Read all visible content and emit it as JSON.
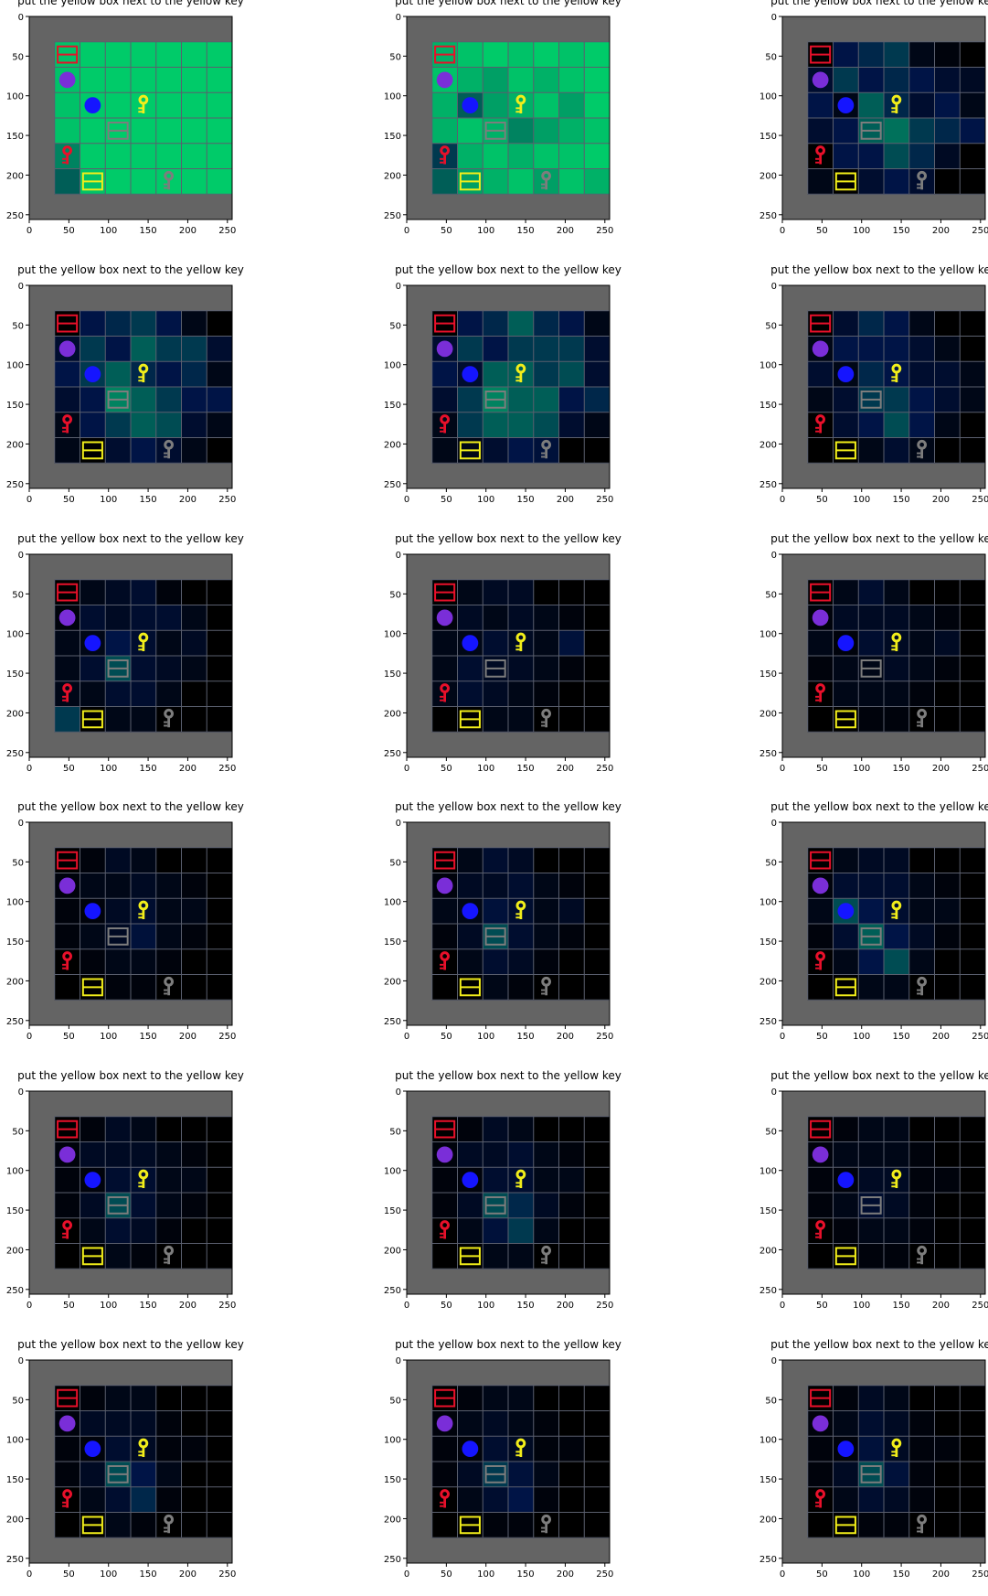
{
  "figure": {
    "panel_title": "put the yellow box next to the yellow key",
    "x_ticks": [
      "0",
      "50",
      "100",
      "150",
      "200",
      "250"
    ],
    "y_ticks": [
      "0",
      "50",
      "100",
      "150",
      "200",
      "250"
    ],
    "tick_values": [
      0,
      50,
      100,
      150,
      200,
      250
    ],
    "axis_range": [
      0,
      256
    ],
    "grid_cells": 7,
    "panel_count": 18,
    "columns": 3,
    "rows": 6
  },
  "colors": {
    "wall": "#646464",
    "floor": "#000000",
    "grid_line": "#5a5f6e",
    "heat": "#00d46a",
    "red": "#e8102a",
    "yellow": "#f2ee1a",
    "blue": "#1515ff",
    "purple": "#7a2ed8",
    "grey": "#7d7d7d"
  },
  "objects": [
    {
      "type": "box",
      "color": "red",
      "cell": [
        0,
        0
      ]
    },
    {
      "type": "ball",
      "color": "purple",
      "cell": [
        0,
        1
      ]
    },
    {
      "type": "ball",
      "color": "blue",
      "cell": [
        1,
        2
      ]
    },
    {
      "type": "key",
      "color": "yellow",
      "cell": [
        3,
        2
      ]
    },
    {
      "type": "box",
      "color": "grey",
      "cell": [
        2,
        3
      ]
    },
    {
      "type": "key",
      "color": "red",
      "cell": [
        0,
        4
      ]
    },
    {
      "type": "box",
      "color": "yellow",
      "cell": [
        1,
        5
      ]
    },
    {
      "type": "key",
      "color": "grey",
      "cell": [
        4,
        5
      ]
    }
  ],
  "panels": [
    {
      "heat": [
        [
          0.9,
          0.95,
          0.95,
          0.95,
          0.95,
          0.95,
          0.95
        ],
        [
          0.9,
          0.95,
          0.95,
          0.95,
          0.95,
          0.95,
          0.95
        ],
        [
          0.9,
          0.95,
          0.95,
          0.95,
          0.95,
          0.95,
          0.95
        ],
        [
          0.9,
          0.95,
          0.95,
          0.95,
          0.95,
          0.95,
          0.95
        ],
        [
          0.6,
          0.95,
          0.95,
          0.95,
          0.95,
          0.95,
          0.95
        ],
        [
          0.5,
          0.9,
          0.95,
          0.95,
          0.95,
          0.95,
          0.95
        ]
      ]
    },
    {
      "heat": [
        [
          0.8,
          0.9,
          0.95,
          0.9,
          0.95,
          0.9,
          0.95
        ],
        [
          0.9,
          0.8,
          0.7,
          0.9,
          0.8,
          0.9,
          0.95
        ],
        [
          0.8,
          0.5,
          0.7,
          0.8,
          0.9,
          0.7,
          0.95
        ],
        [
          0.8,
          0.9,
          0.8,
          0.6,
          0.7,
          0.8,
          0.9
        ],
        [
          0.4,
          0.8,
          0.9,
          0.8,
          0.9,
          0.9,
          0.95
        ],
        [
          0.5,
          0.7,
          0.8,
          0.9,
          0.7,
          0.9,
          0.8
        ]
      ]
    },
    {
      "heat": [
        [
          0.0,
          0.3,
          0.35,
          0.4,
          0.1,
          0.05,
          0.0
        ],
        [
          0.2,
          0.4,
          0.3,
          0.35,
          0.3,
          0.2,
          0.15
        ],
        [
          0.3,
          0.1,
          0.5,
          0.35,
          0.2,
          0.3,
          0.1
        ],
        [
          0.2,
          0.3,
          0.5,
          0.55,
          0.4,
          0.35,
          0.3
        ],
        [
          0.0,
          0.3,
          0.3,
          0.45,
          0.35,
          0.15,
          0.0
        ],
        [
          0.1,
          0.0,
          0.2,
          0.3,
          0.2,
          0.0,
          0.0
        ]
      ]
    },
    {
      "heat": [
        [
          0.0,
          0.3,
          0.35,
          0.4,
          0.3,
          0.1,
          0.0
        ],
        [
          0.2,
          0.4,
          0.3,
          0.5,
          0.4,
          0.4,
          0.2
        ],
        [
          0.3,
          0.4,
          0.5,
          0.35,
          0.3,
          0.35,
          0.1
        ],
        [
          0.2,
          0.3,
          0.6,
          0.5,
          0.4,
          0.3,
          0.3
        ],
        [
          0.1,
          0.3,
          0.4,
          0.5,
          0.45,
          0.2,
          0.1
        ],
        [
          0.1,
          0.0,
          0.2,
          0.3,
          0.2,
          0.1,
          0.0
        ]
      ]
    },
    {
      "heat": [
        [
          0.0,
          0.3,
          0.35,
          0.5,
          0.35,
          0.3,
          0.1
        ],
        [
          0.2,
          0.4,
          0.3,
          0.4,
          0.4,
          0.4,
          0.2
        ],
        [
          0.3,
          0.2,
          0.5,
          0.5,
          0.4,
          0.45,
          0.2
        ],
        [
          0.2,
          0.4,
          0.6,
          0.5,
          0.5,
          0.3,
          0.35
        ],
        [
          0.1,
          0.4,
          0.5,
          0.5,
          0.45,
          0.2,
          0.1
        ],
        [
          0.1,
          0.1,
          0.2,
          0.3,
          0.25,
          0.0,
          0.0
        ]
      ]
    },
    {
      "heat": [
        [
          0.0,
          0.2,
          0.35,
          0.3,
          0.1,
          0.0,
          0.0
        ],
        [
          0.1,
          0.3,
          0.3,
          0.3,
          0.2,
          0.1,
          0.0
        ],
        [
          0.2,
          0.1,
          0.35,
          0.3,
          0.2,
          0.2,
          0.1
        ],
        [
          0.1,
          0.2,
          0.4,
          0.4,
          0.3,
          0.2,
          0.1
        ],
        [
          0.0,
          0.2,
          0.3,
          0.45,
          0.3,
          0.1,
          0.0
        ],
        [
          0.0,
          0.0,
          0.1,
          0.2,
          0.1,
          0.0,
          0.0
        ]
      ]
    },
    {
      "heat": [
        [
          0.0,
          0.1,
          0.15,
          0.2,
          0.05,
          0.0,
          0.0
        ],
        [
          0.05,
          0.2,
          0.15,
          0.2,
          0.2,
          0.1,
          0.0
        ],
        [
          0.1,
          0.1,
          0.3,
          0.2,
          0.1,
          0.15,
          0.0
        ],
        [
          0.1,
          0.2,
          0.45,
          0.2,
          0.15,
          0.1,
          0.0
        ],
        [
          0.1,
          0.1,
          0.2,
          0.2,
          0.1,
          0.0,
          0.0
        ],
        [
          0.4,
          0.0,
          0.1,
          0.1,
          0.0,
          0.0,
          0.0
        ]
      ]
    },
    {
      "heat": [
        [
          0.0,
          0.1,
          0.15,
          0.15,
          0.0,
          0.0,
          0.0
        ],
        [
          0.05,
          0.15,
          0.1,
          0.15,
          0.1,
          0.05,
          0.0
        ],
        [
          0.1,
          0.1,
          0.2,
          0.15,
          0.1,
          0.25,
          0.0
        ],
        [
          0.1,
          0.2,
          0.15,
          0.15,
          0.1,
          0.05,
          0.0
        ],
        [
          0.1,
          0.2,
          0.15,
          0.1,
          0.05,
          0.0,
          0.0
        ],
        [
          0.0,
          0.0,
          0.1,
          0.1,
          0.0,
          0.0,
          0.0
        ]
      ]
    },
    {
      "heat": [
        [
          0.0,
          0.1,
          0.2,
          0.1,
          0.0,
          0.0,
          0.0
        ],
        [
          0.05,
          0.15,
          0.15,
          0.15,
          0.1,
          0.05,
          0.0
        ],
        [
          0.1,
          0.05,
          0.2,
          0.15,
          0.1,
          0.15,
          0.0
        ],
        [
          0.05,
          0.1,
          0.1,
          0.15,
          0.1,
          0.05,
          0.0
        ],
        [
          0.0,
          0.1,
          0.1,
          0.1,
          0.05,
          0.0,
          0.0
        ],
        [
          0.0,
          0.0,
          0.05,
          0.05,
          0.0,
          0.0,
          0.0
        ]
      ]
    },
    {
      "heat": [
        [
          0.0,
          0.05,
          0.15,
          0.1,
          0.0,
          0.0,
          0.0
        ],
        [
          0.05,
          0.1,
          0.1,
          0.15,
          0.1,
          0.05,
          0.0
        ],
        [
          0.05,
          0.05,
          0.15,
          0.2,
          0.1,
          0.1,
          0.0
        ],
        [
          0.05,
          0.1,
          0.15,
          0.25,
          0.1,
          0.05,
          0.0
        ],
        [
          0.0,
          0.05,
          0.1,
          0.1,
          0.05,
          0.0,
          0.0
        ],
        [
          0.0,
          0.0,
          0.05,
          0.05,
          0.0,
          0.0,
          0.0
        ]
      ]
    },
    {
      "heat": [
        [
          0.0,
          0.1,
          0.2,
          0.15,
          0.0,
          0.0,
          0.0
        ],
        [
          0.05,
          0.15,
          0.15,
          0.2,
          0.1,
          0.05,
          0.0
        ],
        [
          0.1,
          0.1,
          0.25,
          0.2,
          0.1,
          0.15,
          0.0
        ],
        [
          0.05,
          0.15,
          0.45,
          0.2,
          0.1,
          0.05,
          0.0
        ],
        [
          0.0,
          0.1,
          0.2,
          0.15,
          0.05,
          0.0,
          0.0
        ],
        [
          0.0,
          0.0,
          0.1,
          0.05,
          0.0,
          0.0,
          0.0
        ]
      ]
    },
    {
      "heat": [
        [
          0.0,
          0.1,
          0.15,
          0.15,
          0.0,
          0.0,
          0.0
        ],
        [
          0.05,
          0.2,
          0.2,
          0.2,
          0.1,
          0.05,
          0.0
        ],
        [
          0.1,
          0.45,
          0.3,
          0.2,
          0.1,
          0.1,
          0.0
        ],
        [
          0.05,
          0.2,
          0.5,
          0.3,
          0.15,
          0.05,
          0.0
        ],
        [
          0.0,
          0.1,
          0.3,
          0.45,
          0.1,
          0.0,
          0.0
        ],
        [
          0.0,
          0.0,
          0.1,
          0.1,
          0.0,
          0.0,
          0.0
        ]
      ]
    },
    {
      "heat": [
        [
          0.0,
          0.05,
          0.15,
          0.1,
          0.0,
          0.0,
          0.0
        ],
        [
          0.05,
          0.15,
          0.15,
          0.15,
          0.1,
          0.05,
          0.0
        ],
        [
          0.05,
          0.05,
          0.2,
          0.2,
          0.1,
          0.1,
          0.0
        ],
        [
          0.05,
          0.15,
          0.45,
          0.2,
          0.1,
          0.05,
          0.0
        ],
        [
          0.0,
          0.1,
          0.2,
          0.15,
          0.05,
          0.0,
          0.0
        ],
        [
          0.0,
          0.0,
          0.1,
          0.05,
          0.0,
          0.0,
          0.0
        ]
      ]
    },
    {
      "heat": [
        [
          0.0,
          0.05,
          0.15,
          0.1,
          0.0,
          0.0,
          0.0
        ],
        [
          0.05,
          0.15,
          0.15,
          0.2,
          0.1,
          0.05,
          0.0
        ],
        [
          0.05,
          0.05,
          0.2,
          0.2,
          0.1,
          0.1,
          0.0
        ],
        [
          0.05,
          0.15,
          0.45,
          0.35,
          0.15,
          0.05,
          0.0
        ],
        [
          0.0,
          0.1,
          0.25,
          0.4,
          0.1,
          0.0,
          0.0
        ],
        [
          0.0,
          0.0,
          0.1,
          0.1,
          0.0,
          0.0,
          0.0
        ]
      ]
    },
    {
      "heat": [
        [
          0.0,
          0.05,
          0.1,
          0.1,
          0.0,
          0.0,
          0.0
        ],
        [
          0.05,
          0.1,
          0.1,
          0.1,
          0.05,
          0.0,
          0.0
        ],
        [
          0.05,
          0.05,
          0.15,
          0.15,
          0.05,
          0.05,
          0.0
        ],
        [
          0.05,
          0.1,
          0.2,
          0.15,
          0.05,
          0.0,
          0.0
        ],
        [
          0.0,
          0.05,
          0.1,
          0.1,
          0.05,
          0.0,
          0.0
        ],
        [
          0.0,
          0.0,
          0.05,
          0.05,
          0.0,
          0.0,
          0.0
        ]
      ]
    },
    {
      "heat": [
        [
          0.0,
          0.05,
          0.1,
          0.1,
          0.0,
          0.0,
          0.0
        ],
        [
          0.05,
          0.15,
          0.15,
          0.15,
          0.05,
          0.0,
          0.0
        ],
        [
          0.05,
          0.05,
          0.2,
          0.15,
          0.05,
          0.05,
          0.0
        ],
        [
          0.05,
          0.15,
          0.45,
          0.3,
          0.1,
          0.0,
          0.0
        ],
        [
          0.0,
          0.1,
          0.2,
          0.35,
          0.05,
          0.0,
          0.0
        ],
        [
          0.0,
          0.0,
          0.1,
          0.05,
          0.0,
          0.0,
          0.0
        ]
      ]
    },
    {
      "heat": [
        [
          0.0,
          0.05,
          0.1,
          0.1,
          0.0,
          0.0,
          0.0
        ],
        [
          0.05,
          0.1,
          0.15,
          0.1,
          0.05,
          0.0,
          0.0
        ],
        [
          0.05,
          0.05,
          0.2,
          0.15,
          0.05,
          0.05,
          0.0
        ],
        [
          0.05,
          0.15,
          0.4,
          0.25,
          0.1,
          0.0,
          0.0
        ],
        [
          0.0,
          0.1,
          0.2,
          0.3,
          0.05,
          0.0,
          0.0
        ],
        [
          0.0,
          0.0,
          0.05,
          0.05,
          0.0,
          0.0,
          0.0
        ]
      ]
    },
    {
      "heat": [
        [
          0.0,
          0.05,
          0.15,
          0.1,
          0.0,
          0.0,
          0.0
        ],
        [
          0.05,
          0.1,
          0.2,
          0.15,
          0.05,
          0.0,
          0.0
        ],
        [
          0.05,
          0.05,
          0.25,
          0.15,
          0.05,
          0.05,
          0.0
        ],
        [
          0.05,
          0.15,
          0.45,
          0.25,
          0.05,
          0.0,
          0.0
        ],
        [
          0.0,
          0.1,
          0.2,
          0.15,
          0.05,
          0.0,
          0.0
        ],
        [
          0.0,
          0.0,
          0.05,
          0.05,
          0.0,
          0.0,
          0.0
        ]
      ]
    }
  ]
}
